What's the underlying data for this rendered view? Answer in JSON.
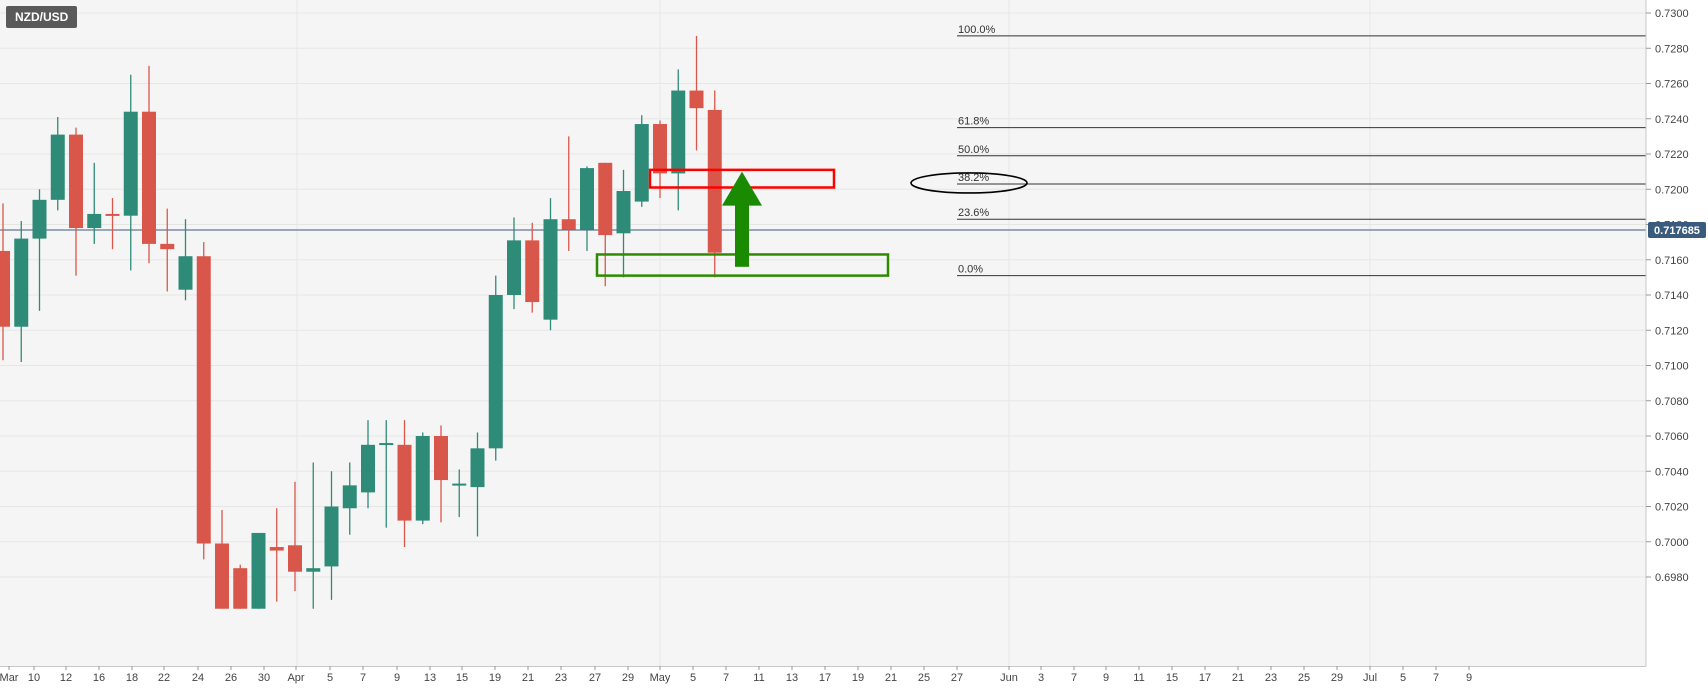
{
  "symbol": "NZD/USD",
  "current_price_label": "0.717685",
  "colors": {
    "up": "#2e8b77",
    "down": "#d9574a",
    "grid": "#e6e6e6",
    "background": "#f5f5f5",
    "price_line": "#3b5b7d",
    "fib_line": "#333333",
    "resistance_box": "#ff0000",
    "support_box": "#2e8b00",
    "arrow": "#1a8a00"
  },
  "chart_data": {
    "type": "candlestick",
    "title": "NZD/USD",
    "xlabel": "",
    "ylabel": "",
    "ylim": [
      0.6962,
      0.7306
    ],
    "y_ticks": [
      "0.7300",
      "0.7280",
      "0.7260",
      "0.7240",
      "0.7220",
      "0.7200",
      "0.7180",
      "0.7160",
      "0.7140",
      "0.7120",
      "0.7100",
      "0.7080",
      "0.7060",
      "0.7040",
      "0.7020",
      "0.7000",
      "0.6980"
    ],
    "x_tick_labels": [
      "Mar",
      "10",
      "12",
      "16",
      "18",
      "22",
      "24",
      "26",
      "30",
      "Apr",
      "5",
      "7",
      "9",
      "13",
      "15",
      "19",
      "21",
      "23",
      "27",
      "29",
      "May",
      "5",
      "7",
      "11",
      "13",
      "17",
      "19",
      "21",
      "25",
      "27",
      "Jun",
      "3",
      "7",
      "9",
      "11",
      "15",
      "17",
      "21",
      "23",
      "25",
      "29",
      "Jul",
      "5",
      "7",
      "9"
    ],
    "grid": true,
    "current_price": 0.717685,
    "candles": [
      {
        "date": "Mar 8",
        "open": 0.7165,
        "high": 0.7192,
        "low": 0.7103,
        "close": 0.7122
      },
      {
        "date": "Mar 9",
        "open": 0.7122,
        "high": 0.7182,
        "low": 0.7102,
        "close": 0.7172
      },
      {
        "date": "Mar 10",
        "open": 0.7172,
        "high": 0.72,
        "low": 0.7131,
        "close": 0.7194
      },
      {
        "date": "Mar 11",
        "open": 0.7194,
        "high": 0.7241,
        "low": 0.7188,
        "close": 0.7231
      },
      {
        "date": "Mar 12",
        "open": 0.7231,
        "high": 0.7235,
        "low": 0.7151,
        "close": 0.7178
      },
      {
        "date": "Mar 15",
        "open": 0.7178,
        "high": 0.7215,
        "low": 0.7169,
        "close": 0.7186
      },
      {
        "date": "Mar 16",
        "open": 0.7186,
        "high": 0.7195,
        "low": 0.7166,
        "close": 0.7185
      },
      {
        "date": "Mar 17",
        "open": 0.7185,
        "high": 0.7265,
        "low": 0.7154,
        "close": 0.7244
      },
      {
        "date": "Mar 18",
        "open": 0.7244,
        "high": 0.727,
        "low": 0.7158,
        "close": 0.7169
      },
      {
        "date": "Mar 19",
        "open": 0.7169,
        "high": 0.7189,
        "low": 0.7142,
        "close": 0.7166
      },
      {
        "date": "Mar 22",
        "open": 0.7143,
        "high": 0.7183,
        "low": 0.7137,
        "close": 0.7162
      },
      {
        "date": "Mar 23",
        "open": 0.7162,
        "high": 0.717,
        "low": 0.699,
        "close": 0.6999
      },
      {
        "date": "Mar 24",
        "open": 0.6999,
        "high": 0.7018,
        "low": 0.6962,
        "close": 0.6962
      },
      {
        "date": "Mar 25",
        "open": 0.6985,
        "high": 0.6987,
        "low": 0.6962,
        "close": 0.6962
      },
      {
        "date": "Mar 26",
        "open": 0.6962,
        "high": 0.7005,
        "low": 0.6962,
        "close": 0.7005
      },
      {
        "date": "Mar 29",
        "open": 0.6997,
        "high": 0.7019,
        "low": 0.6966,
        "close": 0.6995
      },
      {
        "date": "Mar 30",
        "open": 0.6998,
        "high": 0.7034,
        "low": 0.6972,
        "close": 0.6983
      },
      {
        "date": "Mar 31",
        "open": 0.6983,
        "high": 0.7045,
        "low": 0.6962,
        "close": 0.6985
      },
      {
        "date": "Apr 1",
        "open": 0.6986,
        "high": 0.704,
        "low": 0.6967,
        "close": 0.702
      },
      {
        "date": "Apr 2",
        "open": 0.7019,
        "high": 0.7045,
        "low": 0.7004,
        "close": 0.7032
      },
      {
        "date": "Apr 5",
        "open": 0.7028,
        "high": 0.7069,
        "low": 0.7019,
        "close": 0.7055
      },
      {
        "date": "Apr 6",
        "open": 0.7055,
        "high": 0.7069,
        "low": 0.7008,
        "close": 0.7056
      },
      {
        "date": "Apr 7",
        "open": 0.7055,
        "high": 0.7069,
        "low": 0.6997,
        "close": 0.7012
      },
      {
        "date": "Apr 8",
        "open": 0.7012,
        "high": 0.7062,
        "low": 0.701,
        "close": 0.706
      },
      {
        "date": "Apr 9",
        "open": 0.706,
        "high": 0.7066,
        "low": 0.7011,
        "close": 0.7035
      },
      {
        "date": "Apr 12",
        "open": 0.7032,
        "high": 0.7041,
        "low": 0.7014,
        "close": 0.7033
      },
      {
        "date": "Apr 13",
        "open": 0.7031,
        "high": 0.7062,
        "low": 0.7003,
        "close": 0.7053
      },
      {
        "date": "Apr 14",
        "open": 0.7053,
        "high": 0.7151,
        "low": 0.7046,
        "close": 0.714
      },
      {
        "date": "Apr 15",
        "open": 0.714,
        "high": 0.7184,
        "low": 0.7132,
        "close": 0.7171
      },
      {
        "date": "Apr 16",
        "open": 0.7171,
        "high": 0.7181,
        "low": 0.713,
        "close": 0.7136
      },
      {
        "date": "Apr 19",
        "open": 0.7126,
        "high": 0.7195,
        "low": 0.712,
        "close": 0.7183
      },
      {
        "date": "Apr 20",
        "open": 0.7183,
        "high": 0.723,
        "low": 0.7165,
        "close": 0.7177
      },
      {
        "date": "Apr 21",
        "open": 0.7177,
        "high": 0.7213,
        "low": 0.7165,
        "close": 0.7212
      },
      {
        "date": "Apr 22",
        "open": 0.7215,
        "high": 0.7215,
        "low": 0.7145,
        "close": 0.7174
      },
      {
        "date": "Apr 23",
        "open": 0.7175,
        "high": 0.7211,
        "low": 0.715,
        "close": 0.7199
      },
      {
        "date": "Apr 26",
        "open": 0.7193,
        "high": 0.7242,
        "low": 0.719,
        "close": 0.7237
      },
      {
        "date": "Apr 27",
        "open": 0.7237,
        "high": 0.7239,
        "low": 0.7195,
        "close": 0.7209
      },
      {
        "date": "Apr 28",
        "open": 0.7209,
        "high": 0.7268,
        "low": 0.7188,
        "close": 0.7256
      },
      {
        "date": "Apr 29",
        "open": 0.7256,
        "high": 0.7287,
        "low": 0.7222,
        "close": 0.7246
      },
      {
        "date": "Apr 30",
        "open": 0.7245,
        "high": 0.7256,
        "low": 0.715,
        "close": 0.7164
      }
    ],
    "fibonacci": [
      {
        "label": "100.0%",
        "value": 0.7287
      },
      {
        "label": "61.8%",
        "value": 0.7235
      },
      {
        "label": "50.0%",
        "value": 0.7219
      },
      {
        "label": "38.2%",
        "value": 0.7203
      },
      {
        "label": "23.6%",
        "value": 0.7183
      },
      {
        "label": "0.0%",
        "value": 0.7151
      }
    ],
    "annotations": [
      {
        "type": "box",
        "color": "red",
        "date_from": "Apr 27",
        "date_to": "May 11",
        "y_top": 0.7211,
        "y_bottom": 0.7201
      },
      {
        "type": "box",
        "color": "green",
        "date_from": "Apr 21",
        "date_to": "May 15",
        "y_top": 0.7163,
        "y_bottom": 0.7151
      },
      {
        "type": "arrow",
        "color": "green",
        "date": "May 4",
        "from": 0.7156,
        "to": 0.721
      },
      {
        "type": "ellipse",
        "color": "black",
        "around": "38.2%"
      }
    ]
  }
}
